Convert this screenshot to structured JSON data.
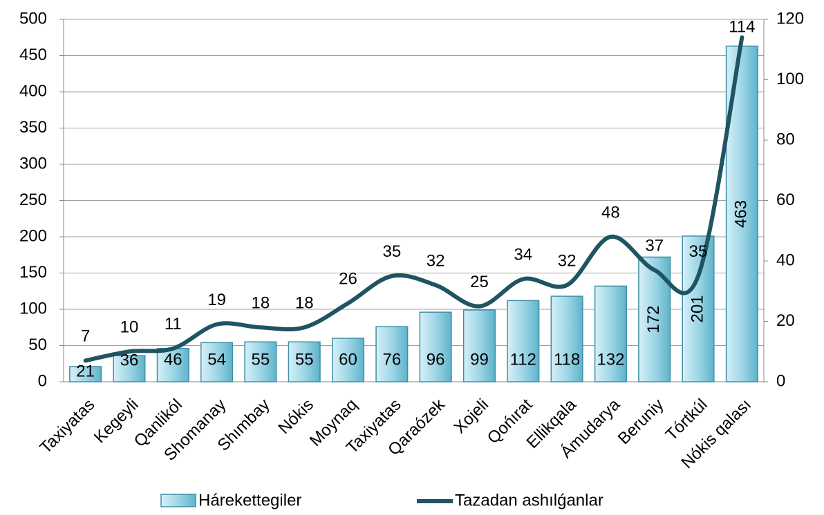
{
  "chart_data": {
    "type": "bar_line",
    "categories": [
      "Taxiyatas",
      "Kegeyli",
      "Qanlikól",
      "Shomanay",
      "Shımbay",
      "Nókis",
      "Moynaq",
      "Taxiyatas",
      "Qaraózek",
      "Xojeli",
      "Qońırat",
      "Ellikqala",
      "Ámudarya",
      "Beruniy",
      "Tórtkúl",
      "Nókis qalası"
    ],
    "series": [
      {
        "name": "Hárekettegiler",
        "color": "#7cc7dc",
        "type": "bar",
        "values": [
          21,
          36,
          46,
          54,
          55,
          55,
          60,
          76,
          96,
          99,
          112,
          118,
          132,
          172,
          201,
          463
        ]
      },
      {
        "name": "Tazadan ashılǵanlar",
        "color": "#1f5462",
        "type": "line",
        "axis": "y2",
        "values": [
          7,
          10,
          11,
          19,
          18,
          18,
          26,
          35,
          32,
          25,
          34,
          32,
          48,
          37,
          35,
          114
        ]
      }
    ],
    "ylim": [
      0,
      500
    ],
    "yticks": [
      0,
      50,
      100,
      150,
      200,
      250,
      300,
      350,
      400,
      450,
      500
    ],
    "y2lim": [
      0,
      120
    ],
    "y2ticks": [
      0,
      20,
      40,
      60,
      80,
      100,
      120
    ],
    "grid": true,
    "legend": "bottom"
  }
}
